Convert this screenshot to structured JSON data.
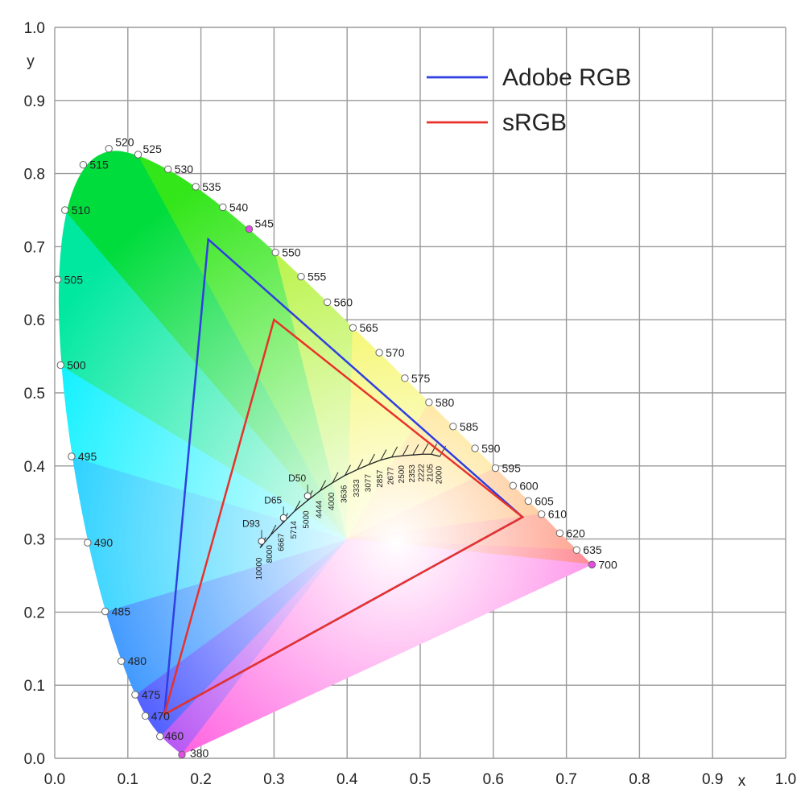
{
  "chart_data": {
    "type": "scatter",
    "xlabel": "x",
    "ylabel": "y",
    "xlim": [
      0,
      1
    ],
    "ylim": [
      0,
      1
    ],
    "x_ticks": [
      "0.0",
      "0.1",
      "0.2",
      "0.3",
      "0.4",
      "0.5",
      "0.6",
      "0.7",
      "0.8",
      "0.9",
      "1.0"
    ],
    "y_ticks": [
      "0.0",
      "0.1",
      "0.2",
      "0.3",
      "0.4",
      "0.5",
      "0.6",
      "0.7",
      "0.8",
      "0.9",
      "1.0"
    ],
    "grid": true,
    "legend_placement": "top-right",
    "series": [
      {
        "name": "Adobe RGB",
        "color": "#2f3fe0",
        "points": [
          [
            0.21,
            0.71
          ],
          [
            0.64,
            0.33
          ],
          [
            0.15,
            0.06
          ]
        ]
      },
      {
        "name": "sRGB",
        "color": "#e8312a",
        "points": [
          [
            0.3,
            0.6
          ],
          [
            0.64,
            0.33
          ],
          [
            0.15,
            0.06
          ]
        ]
      }
    ],
    "spectral_locus": [
      {
        "label": "380",
        "x": 0.174,
        "y": 0.005
      },
      {
        "label": "460",
        "x": 0.144,
        "y": 0.03
      },
      {
        "label": "470",
        "x": 0.124,
        "y": 0.058
      },
      {
        "label": "475",
        "x": 0.11,
        "y": 0.087
      },
      {
        "label": "480",
        "x": 0.091,
        "y": 0.133
      },
      {
        "label": "485",
        "x": 0.069,
        "y": 0.201
      },
      {
        "label": "490",
        "x": 0.045,
        "y": 0.295
      },
      {
        "label": "495",
        "x": 0.023,
        "y": 0.413
      },
      {
        "label": "500",
        "x": 0.008,
        "y": 0.538
      },
      {
        "label": "505",
        "x": 0.004,
        "y": 0.655
      },
      {
        "label": "510",
        "x": 0.014,
        "y": 0.75
      },
      {
        "label": "515",
        "x": 0.039,
        "y": 0.812
      },
      {
        "label": "520",
        "x": 0.074,
        "y": 0.834
      },
      {
        "label": "525",
        "x": 0.114,
        "y": 0.826
      },
      {
        "label": "530",
        "x": 0.155,
        "y": 0.806
      },
      {
        "label": "535",
        "x": 0.193,
        "y": 0.782
      },
      {
        "label": "540",
        "x": 0.23,
        "y": 0.754
      },
      {
        "label": "545",
        "x": 0.266,
        "y": 0.724
      },
      {
        "label": "550",
        "x": 0.302,
        "y": 0.692
      },
      {
        "label": "555",
        "x": 0.337,
        "y": 0.659
      },
      {
        "label": "560",
        "x": 0.373,
        "y": 0.624
      },
      {
        "label": "565",
        "x": 0.408,
        "y": 0.589
      },
      {
        "label": "570",
        "x": 0.444,
        "y": 0.555
      },
      {
        "label": "575",
        "x": 0.479,
        "y": 0.52
      },
      {
        "label": "580",
        "x": 0.512,
        "y": 0.487
      },
      {
        "label": "585",
        "x": 0.545,
        "y": 0.454
      },
      {
        "label": "590",
        "x": 0.575,
        "y": 0.424
      },
      {
        "label": "595",
        "x": 0.603,
        "y": 0.397
      },
      {
        "label": "600",
        "x": 0.627,
        "y": 0.373
      },
      {
        "label": "605",
        "x": 0.648,
        "y": 0.352
      },
      {
        "label": "610",
        "x": 0.666,
        "y": 0.334
      },
      {
        "label": "620",
        "x": 0.691,
        "y": 0.308
      },
      {
        "label": "635",
        "x": 0.714,
        "y": 0.285
      },
      {
        "label": "700",
        "x": 0.735,
        "y": 0.265
      }
    ],
    "white_points": [
      {
        "label": "D50",
        "x": 0.346,
        "y": 0.359
      },
      {
        "label": "D65",
        "x": 0.313,
        "y": 0.329
      },
      {
        "label": "D93",
        "x": 0.283,
        "y": 0.297
      }
    ],
    "planckian_locus_cct": [
      {
        "label": "10000",
        "x": 0.281,
        "y": 0.288
      },
      {
        "label": "8000",
        "x": 0.295,
        "y": 0.305
      },
      {
        "label": "6667",
        "x": 0.311,
        "y": 0.321
      },
      {
        "label": "5714",
        "x": 0.328,
        "y": 0.338
      },
      {
        "label": "5000",
        "x": 0.345,
        "y": 0.352
      },
      {
        "label": "4444",
        "x": 0.363,
        "y": 0.366
      },
      {
        "label": "4000",
        "x": 0.38,
        "y": 0.377
      },
      {
        "label": "3636",
        "x": 0.397,
        "y": 0.387
      },
      {
        "label": "3333",
        "x": 0.414,
        "y": 0.395
      },
      {
        "label": "3077",
        "x": 0.43,
        "y": 0.402
      },
      {
        "label": "2857",
        "x": 0.446,
        "y": 0.408
      },
      {
        "label": "2677",
        "x": 0.461,
        "y": 0.412
      },
      {
        "label": "2500",
        "x": 0.476,
        "y": 0.414
      },
      {
        "label": "2353",
        "x": 0.49,
        "y": 0.415
      },
      {
        "label": "2222",
        "x": 0.503,
        "y": 0.416
      },
      {
        "label": "2105",
        "x": 0.515,
        "y": 0.416
      },
      {
        "label": "2000",
        "x": 0.527,
        "y": 0.413
      }
    ]
  }
}
